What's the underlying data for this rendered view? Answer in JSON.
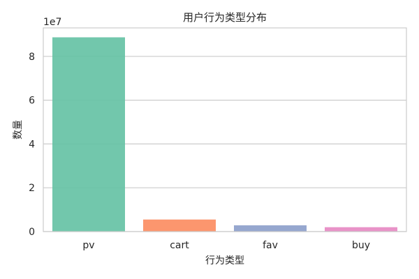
{
  "chart_data": {
    "type": "bar",
    "title": "用户行为类型分布",
    "xlabel": "行为类型",
    "ylabel": "数量",
    "y_offset_label": "1e7",
    "categories": [
      "pv",
      "cart",
      "fav",
      "buy"
    ],
    "values": [
      88700000,
      5500000,
      2850000,
      2000000
    ],
    "colors": [
      "#66c2a5",
      "#fc8d62",
      "#8da0cb",
      "#e78ac3"
    ],
    "ylim": [
      0,
      93000000
    ],
    "yticks": [
      0,
      20000000,
      40000000,
      60000000,
      80000000
    ],
    "ytick_labels": [
      "0",
      "2",
      "4",
      "6",
      "8"
    ],
    "grid": true,
    "legend": "none"
  }
}
